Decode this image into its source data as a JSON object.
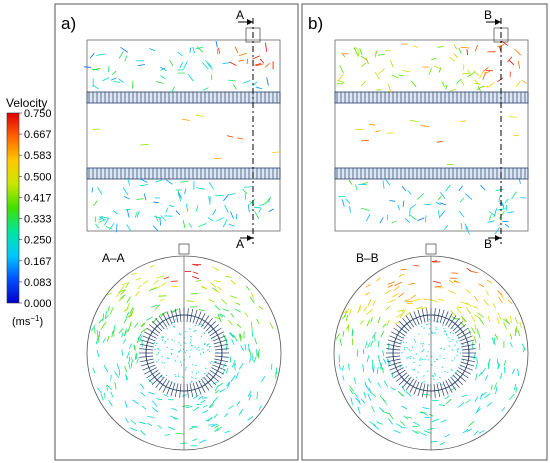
{
  "panels": [
    {
      "letter": "a)",
      "section_mark": "A",
      "section_title": "A–A"
    },
    {
      "letter": "b)",
      "section_mark": "B",
      "section_title": "B–B"
    }
  ],
  "colorbar": {
    "title": "Velocity",
    "ticks": [
      "0.750",
      "0.667",
      "0.583",
      "0.500",
      "0.417",
      "0.333",
      "0.250",
      "0.167",
      "0.083",
      "0.000"
    ],
    "unit_base": "(ms",
    "unit_exp": "−1",
    "unit_close": ")",
    "colors": [
      "#0000c8",
      "#0050ff",
      "#00c8ff",
      "#00e6a0",
      "#40e000",
      "#c8e600",
      "#ffc800",
      "#ff6400",
      "#dc0000"
    ]
  }
}
